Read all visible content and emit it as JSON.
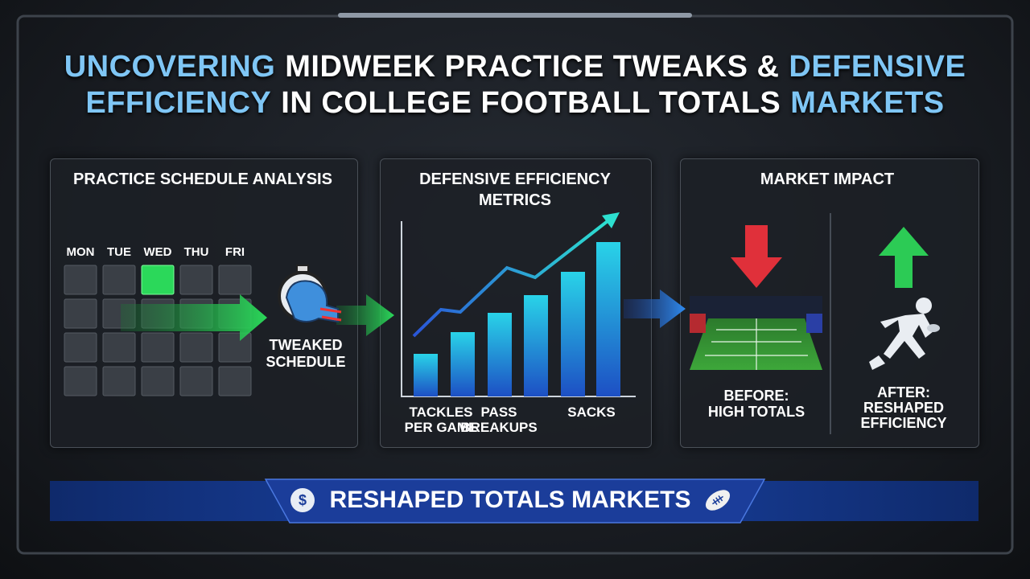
{
  "title": {
    "lines": [
      [
        {
          "text": "UNCOVERING",
          "highlight": true
        },
        {
          "text": "MIDWEEK PRACTICE TWEAKS &",
          "highlight": false
        },
        {
          "text": "DEFENSIVE",
          "highlight": true
        }
      ],
      [
        {
          "text": "EFFICIENCY",
          "highlight": true
        },
        {
          "text": "IN COLLEGE FOOTBALL TOTALS",
          "highlight": false
        },
        {
          "text": "MARKETS",
          "highlight": true
        }
      ]
    ]
  },
  "schedule": {
    "title": "PRACTICE SCHEDULE ANALYSIS",
    "days": [
      "MON",
      "TUE",
      "WED",
      "THU",
      "FRI"
    ],
    "callout": [
      "TWEAKED",
      "SCHEDULE"
    ]
  },
  "metrics": {
    "title": [
      "DEFENSIVE EFFICIENCY",
      "METRICS"
    ],
    "labels": [
      [
        "TACKLES",
        "PER GAME"
      ],
      [
        "PASS",
        "BREAKUPS"
      ],
      [
        "SACKS"
      ]
    ]
  },
  "market": {
    "title": "MARKET IMPACT",
    "before": [
      "BEFORE:",
      "HIGH TOTALS"
    ],
    "after": [
      "AFTER:",
      "RESHAPED",
      "EFFICIENCY"
    ]
  },
  "banner": {
    "icon": "$",
    "text": "RESHAPED TOTALS MARKETS"
  }
}
